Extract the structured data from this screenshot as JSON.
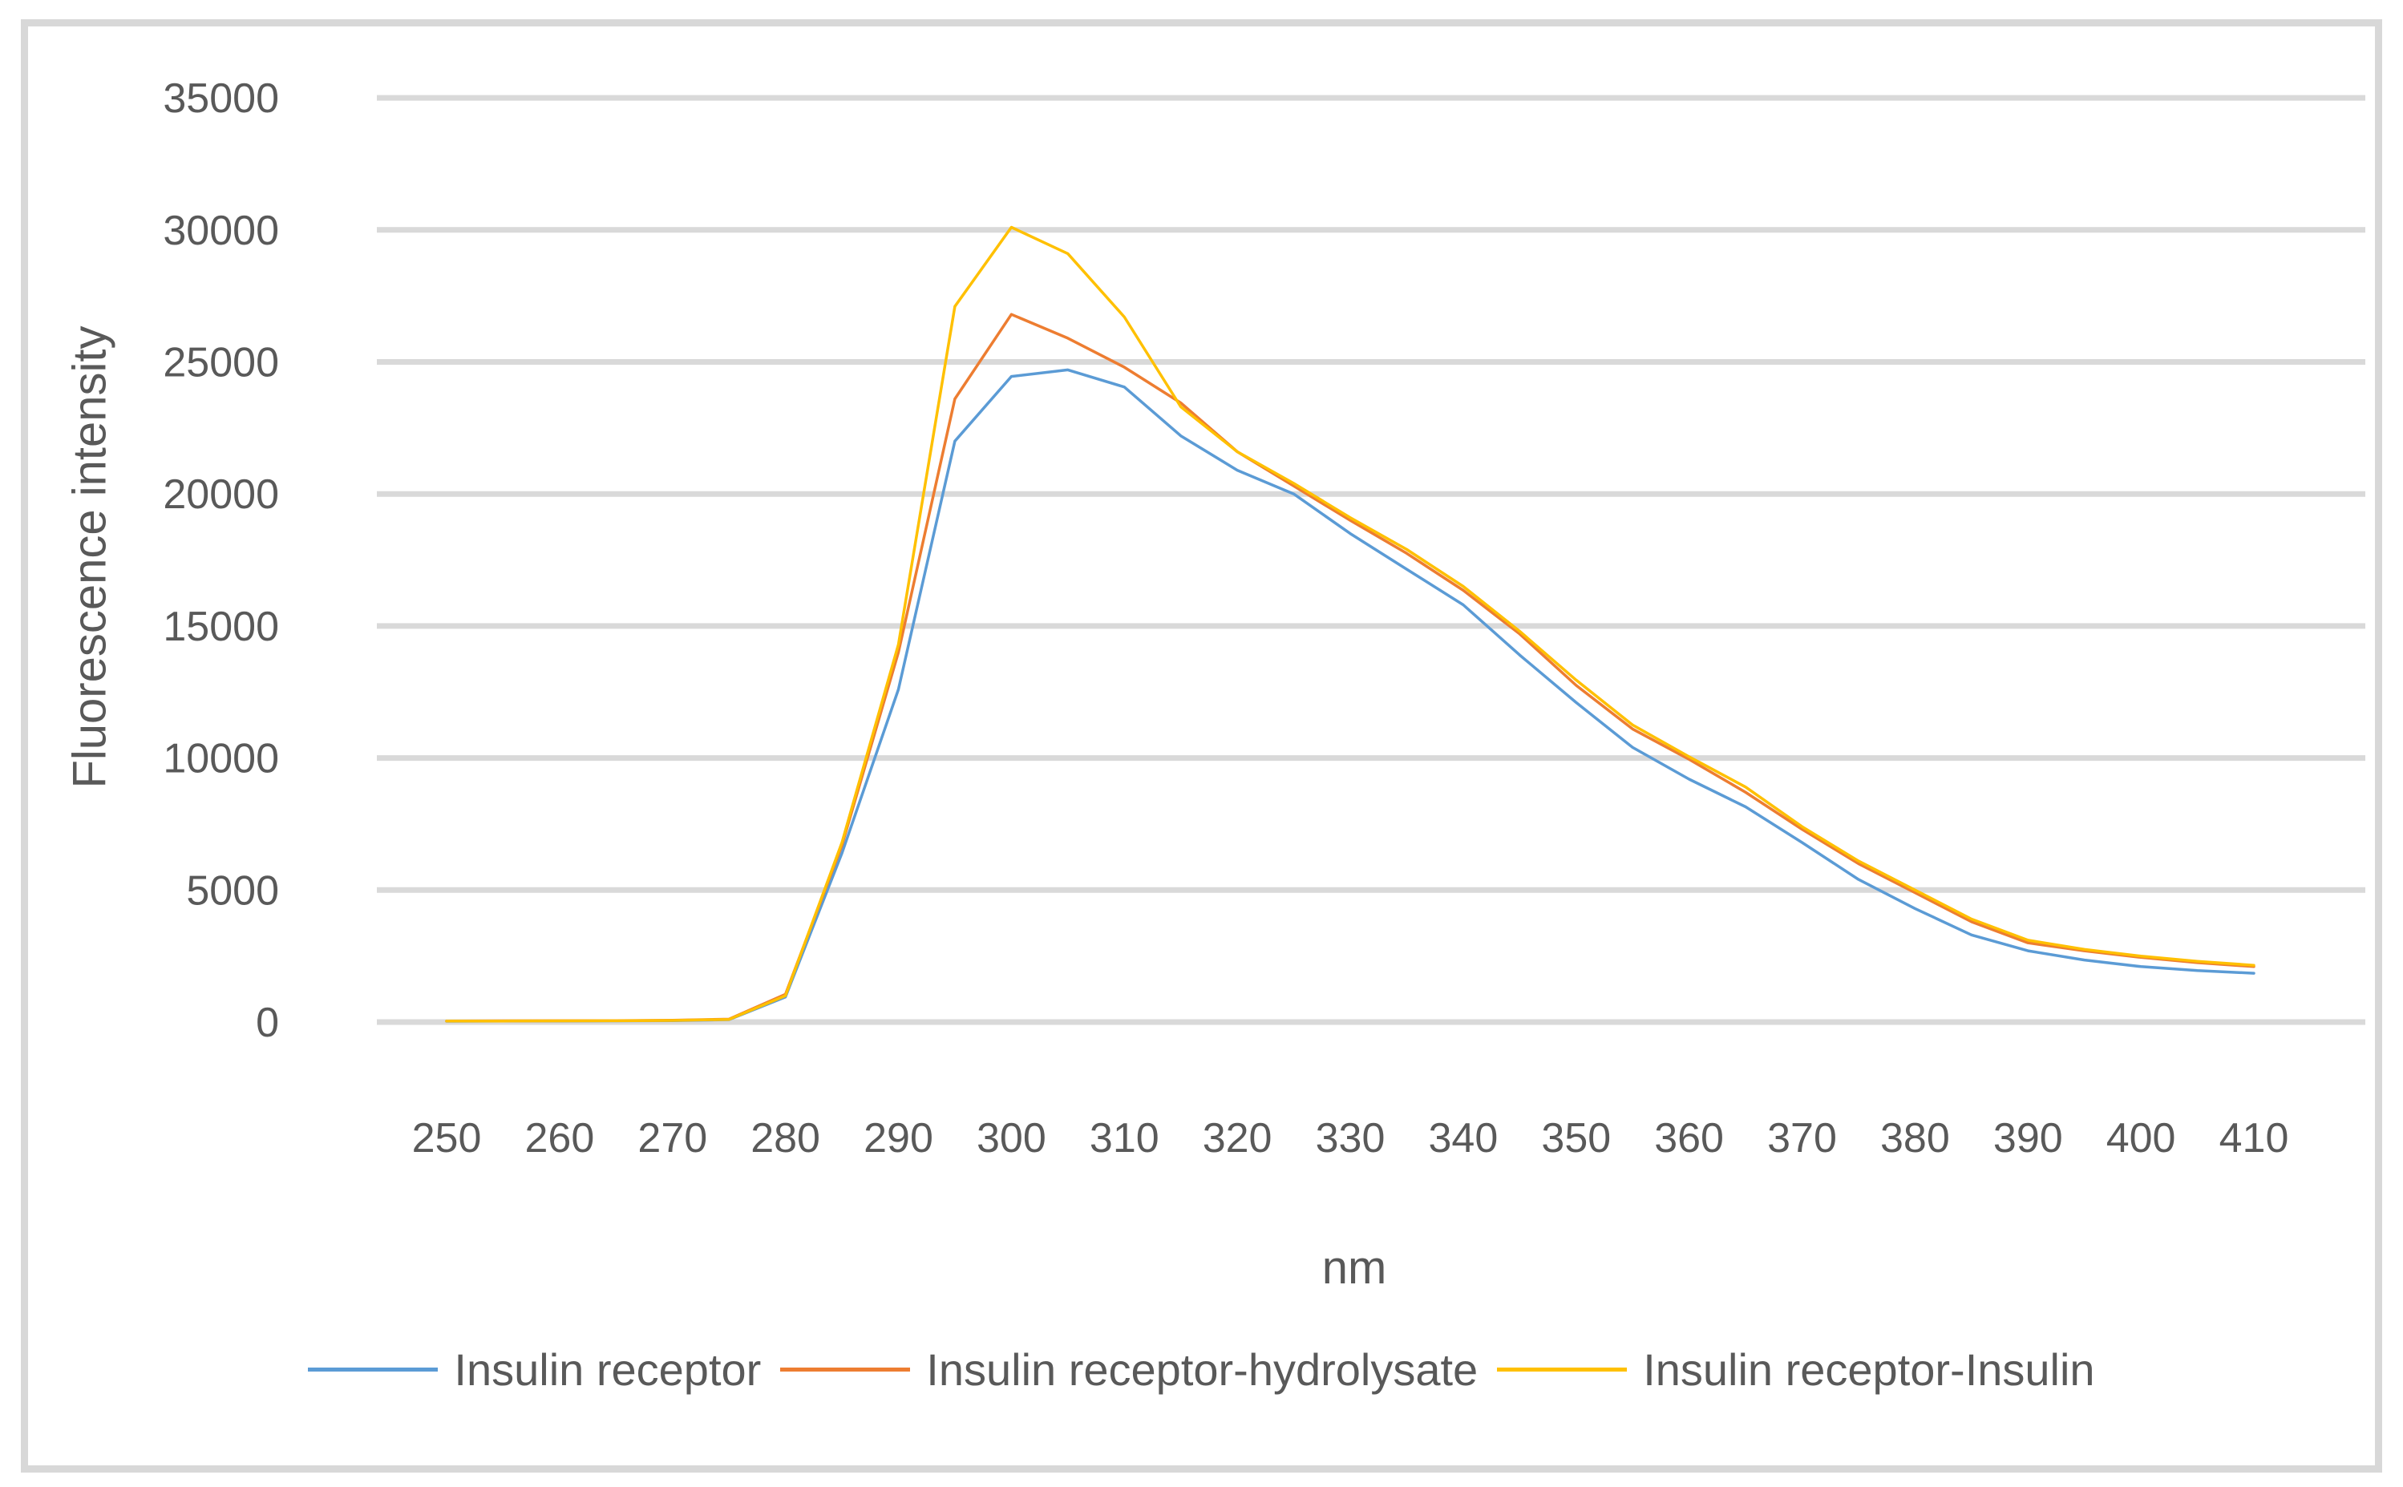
{
  "chart_data": {
    "type": "line",
    "title": "",
    "xlabel": "nm",
    "ylabel": "Fluorescence intensity",
    "ylim": [
      0,
      35000
    ],
    "yticks": [
      0,
      5000,
      10000,
      15000,
      20000,
      25000,
      30000,
      35000
    ],
    "x_tick_labels": [
      250,
      260,
      270,
      280,
      290,
      300,
      310,
      320,
      330,
      340,
      350,
      360,
      370,
      380,
      390,
      400,
      410
    ],
    "grid": "horizontal",
    "legend_position": "bottom",
    "x": [
      250,
      255,
      260,
      265,
      270,
      275,
      280,
      285,
      290,
      295,
      300,
      305,
      310,
      315,
      320,
      325,
      330,
      335,
      340,
      345,
      350,
      355,
      360,
      365,
      370,
      375,
      380,
      385,
      390,
      395,
      400,
      405,
      410
    ],
    "series": [
      {
        "name": "Insulin receptor",
        "color": "#5B9BD5",
        "values": [
          30,
          35,
          40,
          45,
          55,
          90,
          950,
          6400,
          12600,
          22000,
          24450,
          24700,
          24050,
          22200,
          20900,
          20000,
          18500,
          17150,
          15800,
          13900,
          12100,
          10400,
          9200,
          8150,
          6800,
          5400,
          4300,
          3300,
          2700,
          2350,
          2100,
          1950,
          1850
        ]
      },
      {
        "name": "Insulin receptor-hydrolysate",
        "color": "#ED7D31",
        "values": [
          40,
          45,
          50,
          55,
          70,
          110,
          1050,
          6700,
          14000,
          23600,
          26800,
          25900,
          24800,
          23450,
          21600,
          20300,
          19000,
          17750,
          16350,
          14700,
          12750,
          11100,
          9950,
          8700,
          7300,
          6000,
          4900,
          3800,
          3000,
          2700,
          2450,
          2250,
          2100
        ]
      },
      {
        "name": "Insulin receptor-Insulin",
        "color": "#FFC000",
        "values": [
          35,
          40,
          45,
          50,
          60,
          100,
          1000,
          6800,
          14300,
          27100,
          30100,
          29100,
          26700,
          23300,
          21600,
          20400,
          19100,
          17900,
          16500,
          14800,
          12950,
          11250,
          10050,
          8900,
          7400,
          6100,
          5000,
          3900,
          3100,
          2750,
          2500,
          2300,
          2150
        ]
      }
    ]
  },
  "colors": {
    "gridline": "#D9D9D9",
    "text": "#595959",
    "frame_border": "#D8D8D8",
    "background": "#FFFFFF"
  }
}
